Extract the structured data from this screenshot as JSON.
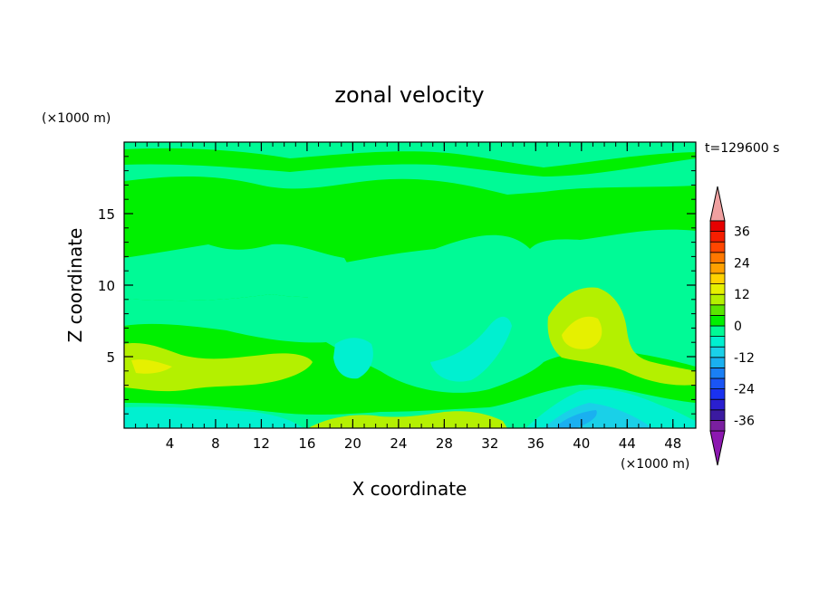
{
  "chart_data": {
    "type": "heatmap",
    "title": "zonal velocity",
    "xlabel": "X coordinate",
    "ylabel": "Z coordinate",
    "x_unit": "(×1000 m)",
    "y_unit": "(×1000 m)",
    "time_label": "t=129600 s",
    "xlim": [
      0,
      50
    ],
    "ylim": [
      0,
      20
    ],
    "x_ticks": [
      4,
      8,
      12,
      16,
      20,
      24,
      28,
      32,
      36,
      40,
      44,
      48
    ],
    "y_ticks": [
      5,
      10,
      15
    ],
    "colorbar": {
      "levels": [
        -40,
        -36,
        -32,
        -28,
        -24,
        -20,
        -16,
        -12,
        -8,
        -4,
        0,
        4,
        8,
        12,
        16,
        20,
        24,
        28,
        32,
        36,
        40
      ],
      "labels": [
        36,
        24,
        12,
        0,
        -12,
        -24,
        -36
      ],
      "colors": [
        "#7a1fa0",
        "#3b1aa0",
        "#2a1fd0",
        "#1a32f0",
        "#1a55f5",
        "#1a7ff5",
        "#1ab0f0",
        "#1ad0e8",
        "#00f0d0",
        "#00fa96",
        "#00f000",
        "#5ae600",
        "#b4f000",
        "#e6f000",
        "#ffd200",
        "#ffa000",
        "#ff7800",
        "#ff4600",
        "#f51e00",
        "#e60000"
      ],
      "under_color": "#8c18b0",
      "over_color": "#f0a0a0"
    },
    "field_description_regions": [
      {
        "x": [
          38,
          41
        ],
        "z": [
          0.3,
          1.0
        ],
        "value": -18
      },
      {
        "x": [
          36,
          46
        ],
        "z": [
          0,
          2
        ],
        "value": -9
      },
      {
        "x": [
          0,
          16
        ],
        "z": [
          0,
          1
        ],
        "value": -6
      },
      {
        "x": [
          18,
          34
        ],
        "z": [
          0,
          1.2
        ],
        "value": 6
      },
      {
        "x": [
          0,
          14
        ],
        "z": [
          2.5,
          5.5
        ],
        "value": 5
      },
      {
        "x": [
          38,
          44
        ],
        "z": [
          5,
          9
        ],
        "value": 9
      },
      {
        "x": [
          10,
          25
        ],
        "z": [
          9,
          12
        ],
        "value": 2
      },
      {
        "x": [
          20,
          32
        ],
        "z": [
          12,
          15
        ],
        "value": 2
      },
      {
        "x": [
          0,
          50
        ],
        "z": [
          15,
          19
        ],
        "value": 1
      }
    ]
  }
}
